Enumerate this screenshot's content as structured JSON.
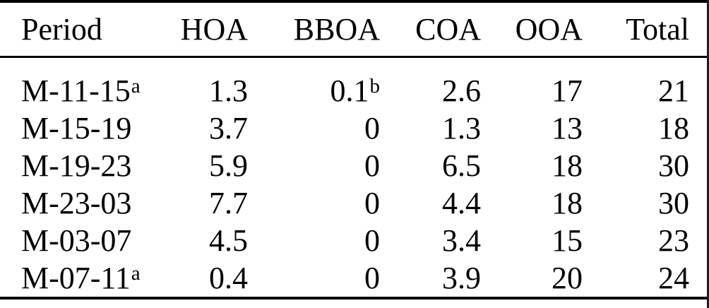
{
  "colors": {
    "background": "#ffffff",
    "text": "#000000",
    "rules": "#000000",
    "right_edge_border": "#1f1f1f"
  },
  "table": {
    "columns": [
      "Period",
      "HOA",
      "BBOA",
      "COA",
      "OOA",
      "Total"
    ],
    "rows": [
      {
        "period": "M-11-15",
        "period_sup": "a",
        "hoa": "1.3",
        "bboa": "0.1",
        "bboa_sup": "b",
        "coa": "2.6",
        "ooa": "17",
        "total": "21"
      },
      {
        "period": "M-15-19",
        "period_sup": "",
        "hoa": "3.7",
        "bboa": "0",
        "bboa_sup": "",
        "coa": "1.3",
        "ooa": "13",
        "total": "18"
      },
      {
        "period": "M-19-23",
        "period_sup": "",
        "hoa": "5.9",
        "bboa": "0",
        "bboa_sup": "",
        "coa": "6.5",
        "ooa": "18",
        "total": "30"
      },
      {
        "period": "M-23-03",
        "period_sup": "",
        "hoa": "7.7",
        "bboa": "0",
        "bboa_sup": "",
        "coa": "4.4",
        "ooa": "18",
        "total": "30"
      },
      {
        "period": "M-03-07",
        "period_sup": "",
        "hoa": "4.5",
        "bboa": "0",
        "bboa_sup": "",
        "coa": "3.4",
        "ooa": "15",
        "total": "23"
      },
      {
        "period": "M-07-11",
        "period_sup": "a",
        "hoa": "0.4",
        "bboa": "0",
        "bboa_sup": "",
        "coa": "3.9",
        "ooa": "20",
        "total": "24"
      }
    ],
    "footnote_markers_visible": [
      "a",
      "b"
    ]
  },
  "chart_data": {
    "type": "table",
    "columns": [
      "Period",
      "HOA",
      "BBOA",
      "COA",
      "OOA",
      "Total"
    ],
    "rows": [
      [
        "M-11-15^a",
        "1.3",
        "0.1^b",
        "2.6",
        "17",
        "21"
      ],
      [
        "M-15-19",
        "3.7",
        "0",
        "1.3",
        "13",
        "18"
      ],
      [
        "M-19-23",
        "5.9",
        "0",
        "6.5",
        "18",
        "30"
      ],
      [
        "M-23-03",
        "7.7",
        "0",
        "4.4",
        "18",
        "30"
      ],
      [
        "M-03-07",
        "4.5",
        "0",
        "3.4",
        "15",
        "23"
      ],
      [
        "M-07-11^a",
        "0.4",
        "0",
        "3.9",
        "20",
        "24"
      ]
    ]
  }
}
